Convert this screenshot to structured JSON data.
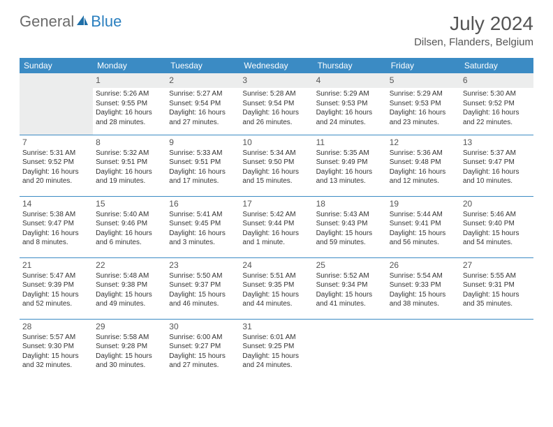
{
  "logo": {
    "text1": "General",
    "text2": "Blue"
  },
  "title": "July 2024",
  "location": "Dilsen, Flanders, Belgium",
  "colors": {
    "header_bg": "#3b8bc4",
    "header_text": "#ffffff",
    "border": "#3b8bc4",
    "logo_gray": "#6b6b6b",
    "logo_blue": "#2a7fbf",
    "daynum_bg": "#eceded",
    "text": "#333333"
  },
  "weekdays": [
    "Sunday",
    "Monday",
    "Tuesday",
    "Wednesday",
    "Thursday",
    "Friday",
    "Saturday"
  ],
  "cells": [
    [
      null,
      {
        "n": "1",
        "sr": "5:26 AM",
        "ss": "9:55 PM",
        "dl": "16 hours and 28 minutes."
      },
      {
        "n": "2",
        "sr": "5:27 AM",
        "ss": "9:54 PM",
        "dl": "16 hours and 27 minutes."
      },
      {
        "n": "3",
        "sr": "5:28 AM",
        "ss": "9:54 PM",
        "dl": "16 hours and 26 minutes."
      },
      {
        "n": "4",
        "sr": "5:29 AM",
        "ss": "9:53 PM",
        "dl": "16 hours and 24 minutes."
      },
      {
        "n": "5",
        "sr": "5:29 AM",
        "ss": "9:53 PM",
        "dl": "16 hours and 23 minutes."
      },
      {
        "n": "6",
        "sr": "5:30 AM",
        "ss": "9:52 PM",
        "dl": "16 hours and 22 minutes."
      }
    ],
    [
      {
        "n": "7",
        "sr": "5:31 AM",
        "ss": "9:52 PM",
        "dl": "16 hours and 20 minutes."
      },
      {
        "n": "8",
        "sr": "5:32 AM",
        "ss": "9:51 PM",
        "dl": "16 hours and 19 minutes."
      },
      {
        "n": "9",
        "sr": "5:33 AM",
        "ss": "9:51 PM",
        "dl": "16 hours and 17 minutes."
      },
      {
        "n": "10",
        "sr": "5:34 AM",
        "ss": "9:50 PM",
        "dl": "16 hours and 15 minutes."
      },
      {
        "n": "11",
        "sr": "5:35 AM",
        "ss": "9:49 PM",
        "dl": "16 hours and 13 minutes."
      },
      {
        "n": "12",
        "sr": "5:36 AM",
        "ss": "9:48 PM",
        "dl": "16 hours and 12 minutes."
      },
      {
        "n": "13",
        "sr": "5:37 AM",
        "ss": "9:47 PM",
        "dl": "16 hours and 10 minutes."
      }
    ],
    [
      {
        "n": "14",
        "sr": "5:38 AM",
        "ss": "9:47 PM",
        "dl": "16 hours and 8 minutes."
      },
      {
        "n": "15",
        "sr": "5:40 AM",
        "ss": "9:46 PM",
        "dl": "16 hours and 6 minutes."
      },
      {
        "n": "16",
        "sr": "5:41 AM",
        "ss": "9:45 PM",
        "dl": "16 hours and 3 minutes."
      },
      {
        "n": "17",
        "sr": "5:42 AM",
        "ss": "9:44 PM",
        "dl": "16 hours and 1 minute."
      },
      {
        "n": "18",
        "sr": "5:43 AM",
        "ss": "9:43 PM",
        "dl": "15 hours and 59 minutes."
      },
      {
        "n": "19",
        "sr": "5:44 AM",
        "ss": "9:41 PM",
        "dl": "15 hours and 56 minutes."
      },
      {
        "n": "20",
        "sr": "5:46 AM",
        "ss": "9:40 PM",
        "dl": "15 hours and 54 minutes."
      }
    ],
    [
      {
        "n": "21",
        "sr": "5:47 AM",
        "ss": "9:39 PM",
        "dl": "15 hours and 52 minutes."
      },
      {
        "n": "22",
        "sr": "5:48 AM",
        "ss": "9:38 PM",
        "dl": "15 hours and 49 minutes."
      },
      {
        "n": "23",
        "sr": "5:50 AM",
        "ss": "9:37 PM",
        "dl": "15 hours and 46 minutes."
      },
      {
        "n": "24",
        "sr": "5:51 AM",
        "ss": "9:35 PM",
        "dl": "15 hours and 44 minutes."
      },
      {
        "n": "25",
        "sr": "5:52 AM",
        "ss": "9:34 PM",
        "dl": "15 hours and 41 minutes."
      },
      {
        "n": "26",
        "sr": "5:54 AM",
        "ss": "9:33 PM",
        "dl": "15 hours and 38 minutes."
      },
      {
        "n": "27",
        "sr": "5:55 AM",
        "ss": "9:31 PM",
        "dl": "15 hours and 35 minutes."
      }
    ],
    [
      {
        "n": "28",
        "sr": "5:57 AM",
        "ss": "9:30 PM",
        "dl": "15 hours and 32 minutes."
      },
      {
        "n": "29",
        "sr": "5:58 AM",
        "ss": "9:28 PM",
        "dl": "15 hours and 30 minutes."
      },
      {
        "n": "30",
        "sr": "6:00 AM",
        "ss": "9:27 PM",
        "dl": "15 hours and 27 minutes."
      },
      {
        "n": "31",
        "sr": "6:01 AM",
        "ss": "9:25 PM",
        "dl": "15 hours and 24 minutes."
      },
      null,
      null,
      null
    ]
  ],
  "labels": {
    "sunrise": "Sunrise:",
    "sunset": "Sunset:",
    "daylight": "Daylight:"
  }
}
